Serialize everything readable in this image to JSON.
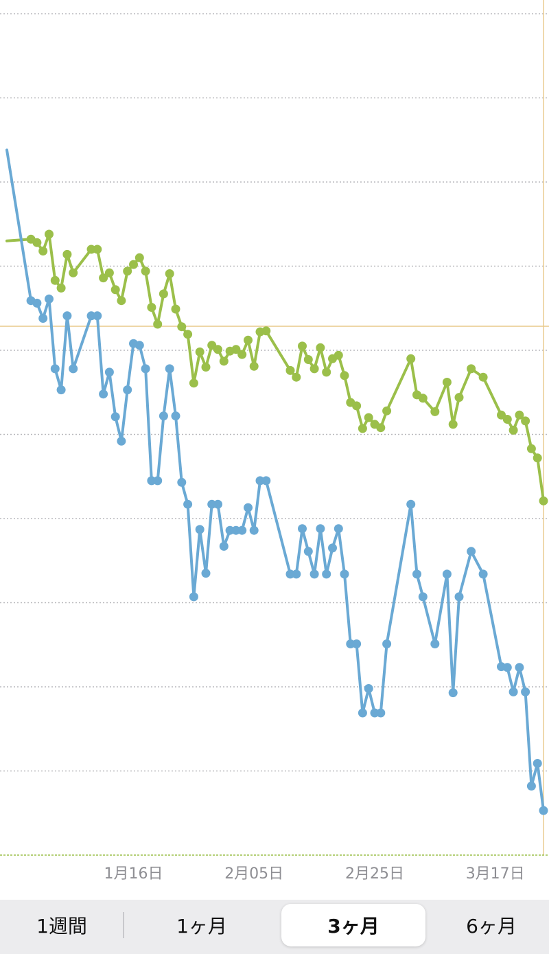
{
  "chart_data": {
    "type": "line",
    "x_ticks": [
      "1月16日",
      "2月05日",
      "2月25日",
      "3月17日"
    ],
    "x_start": "12月26日",
    "x_end": "3月23日",
    "grid": "horizontal-dotted",
    "reference_line": {
      "color": "#e8c98a"
    },
    "series": [
      {
        "color": "#9bbf4a",
        "values": [
          [
            0,
            7.3
          ],
          [
            4,
            7.32
          ],
          [
            5,
            7.28
          ],
          [
            6,
            7.18
          ],
          [
            7,
            7.38
          ],
          [
            8,
            6.83
          ],
          [
            9,
            6.74
          ],
          [
            10,
            7.14
          ],
          [
            11,
            6.92
          ],
          [
            14,
            7.2
          ],
          [
            15,
            7.2
          ],
          [
            16,
            6.86
          ],
          [
            17,
            6.92
          ],
          [
            18,
            6.72
          ],
          [
            19,
            6.59
          ],
          [
            20,
            6.94
          ],
          [
            21,
            7.02
          ],
          [
            22,
            7.1
          ],
          [
            23,
            6.94
          ],
          [
            24,
            6.51
          ],
          [
            25,
            6.31
          ],
          [
            26,
            6.67
          ],
          [
            27,
            6.91
          ],
          [
            28,
            6.49
          ],
          [
            29,
            6.28
          ],
          [
            30,
            6.19
          ],
          [
            31,
            5.61
          ],
          [
            32,
            5.98
          ],
          [
            33,
            5.8
          ],
          [
            34,
            6.06
          ],
          [
            35,
            6.01
          ],
          [
            36,
            5.87
          ],
          [
            37,
            5.99
          ],
          [
            38,
            6.01
          ],
          [
            39,
            5.95
          ],
          [
            40,
            6.12
          ],
          [
            41,
            5.81
          ],
          [
            42,
            6.22
          ],
          [
            43,
            6.23
          ],
          [
            47,
            5.76
          ],
          [
            48,
            5.68
          ],
          [
            49,
            6.05
          ],
          [
            50,
            5.89
          ],
          [
            51,
            5.78
          ],
          [
            52,
            6.03
          ],
          [
            53,
            5.74
          ],
          [
            54,
            5.9
          ],
          [
            55,
            5.94
          ],
          [
            56,
            5.7
          ],
          [
            57,
            5.38
          ],
          [
            58,
            5.34
          ],
          [
            59,
            5.07
          ],
          [
            60,
            5.2
          ],
          [
            61,
            5.12
          ],
          [
            62,
            5.08
          ],
          [
            63,
            5.28
          ],
          [
            67,
            5.9
          ],
          [
            68,
            5.47
          ],
          [
            69,
            5.43
          ],
          [
            71,
            5.27
          ],
          [
            73,
            5.62
          ],
          [
            74,
            5.12
          ],
          [
            75,
            5.44
          ],
          [
            77,
            5.78
          ],
          [
            79,
            5.68
          ],
          [
            82,
            5.23
          ],
          [
            83,
            5.18
          ],
          [
            84,
            5.05
          ],
          [
            85,
            5.23
          ],
          [
            86,
            5.16
          ],
          [
            87,
            4.83
          ],
          [
            88,
            4.72
          ],
          [
            89,
            4.21
          ]
        ]
      },
      {
        "color": "#6aa9d4",
        "values": [
          [
            0,
            8.38
          ],
          [
            4,
            6.59
          ],
          [
            5,
            6.56
          ],
          [
            6,
            6.38
          ],
          [
            7,
            6.61
          ],
          [
            8,
            5.78
          ],
          [
            9,
            5.53
          ],
          [
            10,
            6.41
          ],
          [
            11,
            5.78
          ],
          [
            14,
            6.41
          ],
          [
            15,
            6.41
          ],
          [
            16,
            5.48
          ],
          [
            17,
            5.74
          ],
          [
            18,
            5.21
          ],
          [
            19,
            4.92
          ],
          [
            20,
            5.53
          ],
          [
            21,
            6.08
          ],
          [
            22,
            6.06
          ],
          [
            23,
            5.78
          ],
          [
            24,
            4.45
          ],
          [
            25,
            4.45
          ],
          [
            26,
            5.22
          ],
          [
            27,
            5.78
          ],
          [
            28,
            5.22
          ],
          [
            29,
            4.43
          ],
          [
            30,
            4.17
          ],
          [
            31,
            3.07
          ],
          [
            32,
            3.87
          ],
          [
            33,
            3.35
          ],
          [
            34,
            4.17
          ],
          [
            35,
            4.17
          ],
          [
            36,
            3.67
          ],
          [
            37,
            3.86
          ],
          [
            38,
            3.86
          ],
          [
            39,
            3.86
          ],
          [
            40,
            4.13
          ],
          [
            41,
            3.86
          ],
          [
            42,
            4.45
          ],
          [
            43,
            4.45
          ],
          [
            47,
            3.34
          ],
          [
            48,
            3.34
          ],
          [
            49,
            3.88
          ],
          [
            50,
            3.61
          ],
          [
            51,
            3.34
          ],
          [
            52,
            3.88
          ],
          [
            53,
            3.34
          ],
          [
            54,
            3.65
          ],
          [
            55,
            3.88
          ],
          [
            56,
            3.34
          ],
          [
            57,
            2.51
          ],
          [
            58,
            2.51
          ],
          [
            59,
            1.69
          ],
          [
            60,
            1.98
          ],
          [
            61,
            1.69
          ],
          [
            62,
            1.69
          ],
          [
            63,
            2.51
          ],
          [
            67,
            4.17
          ],
          [
            68,
            3.34
          ],
          [
            69,
            3.07
          ],
          [
            71,
            2.51
          ],
          [
            73,
            3.34
          ],
          [
            74,
            1.93
          ],
          [
            75,
            3.07
          ],
          [
            77,
            3.61
          ],
          [
            79,
            3.34
          ],
          [
            82,
            2.24
          ],
          [
            83,
            2.23
          ],
          [
            84,
            1.94
          ],
          [
            85,
            2.23
          ],
          [
            86,
            1.94
          ],
          [
            87,
            0.82
          ],
          [
            88,
            1.09
          ],
          [
            89,
            0.53
          ]
        ]
      }
    ]
  },
  "range_selector": {
    "options": [
      "1週間",
      "1ヶ月",
      "3ヶ月",
      "6ヶ月"
    ],
    "selected": "3ヶ月"
  }
}
